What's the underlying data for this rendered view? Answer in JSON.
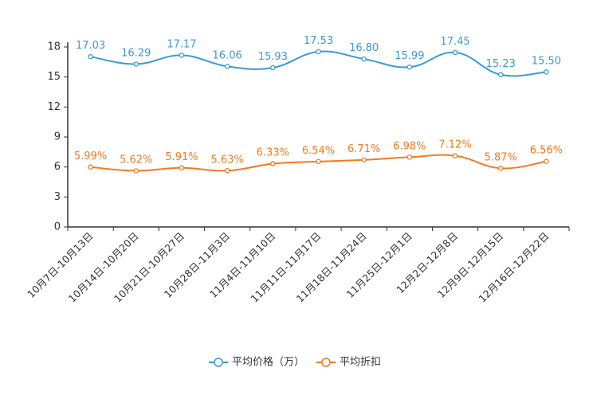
{
  "chart_data": {
    "type": "line",
    "title": "",
    "xlabel": "",
    "ylabel": "",
    "ylim": [
      0,
      18
    ],
    "yticks": [
      0,
      3,
      6,
      9,
      12,
      15,
      18
    ],
    "categories": [
      "10月7日-10月13日",
      "10月14日-10月20日",
      "10月21日-10月27日",
      "10月28日-11月3日",
      "11月4日-11月10日",
      "11月11日-11月17日",
      "11月18日-11月24日",
      "11月25日-12月1日",
      "12月2日-12月8日",
      "12月9日-12月15日",
      "12月16日-12月22日"
    ],
    "series": [
      {
        "name": "平均价格（万）",
        "color": "#3a9bd5",
        "values": [
          17.03,
          16.29,
          17.17,
          16.06,
          15.93,
          17.53,
          16.8,
          15.99,
          17.45,
          15.23,
          15.5
        ],
        "labels": [
          "17.03",
          "16.29",
          "17.17",
          "16.06",
          "15.93",
          "17.53",
          "16.80",
          "15.99",
          "17.45",
          "15.23",
          "15.50"
        ]
      },
      {
        "name": "平均折扣",
        "color": "#f5791f",
        "values": [
          5.99,
          5.62,
          5.91,
          5.63,
          6.33,
          6.54,
          6.71,
          6.98,
          7.12,
          5.87,
          6.56
        ],
        "labels": [
          "5.99%",
          "5.62%",
          "5.91%",
          "5.63%",
          "6.33%",
          "6.54%",
          "6.71%",
          "6.98%",
          "7.12%",
          "5.87%",
          "6.56%"
        ]
      }
    ],
    "legend_position": "bottom-center",
    "grid": false
  }
}
